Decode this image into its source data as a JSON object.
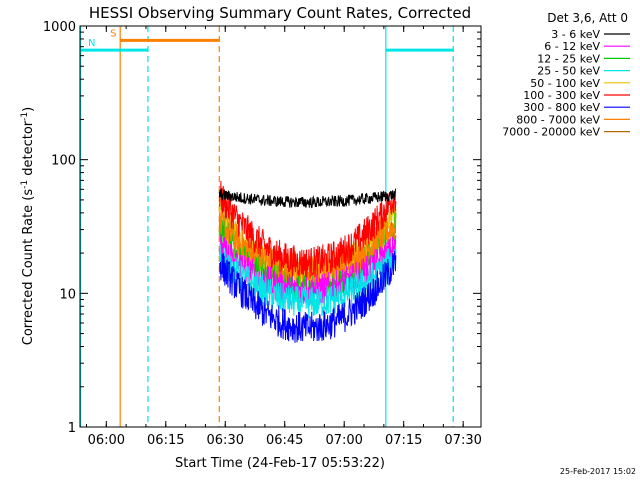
{
  "chart_data": {
    "type": "line",
    "title": "HESSI Observing Summary Count Rates, Corrected",
    "xlabel": "Start Time (24-Feb-17 05:53:22)",
    "ylabel_main": "Corrected Count Rate (s",
    "ylabel_sup1": "-1",
    "ylabel_mid": " detector",
    "ylabel_sup2": "-1",
    "ylabel_end": ")",
    "y_scale": "log",
    "ylim": [
      1,
      1000
    ],
    "xlim": [
      "05:53:22",
      "07:34:30"
    ],
    "x_ticks": [
      "06:00",
      "06:15",
      "06:30",
      "06:45",
      "07:00",
      "07:15",
      "07:30"
    ],
    "y_ticks": [
      "1",
      "10",
      "100",
      "1000"
    ],
    "grid": false,
    "legend_title": "Det 3,6, Att 0",
    "legend_position": "right",
    "data_start": "06:28:30",
    "data_end": "07:13:00",
    "series": [
      {
        "name": "3 - 6 keV",
        "color": "#000000",
        "edge": 55,
        "mid": 48
      },
      {
        "name": "6 - 12 keV",
        "color": "#ff00ff",
        "edge": 22,
        "mid": 10.5
      },
      {
        "name": "12 - 25 keV",
        "color": "#00cc00",
        "edge": 33,
        "mid": 11
      },
      {
        "name": "25 - 50 keV",
        "color": "#00e5e5",
        "edge": 19,
        "mid": 8.5
      },
      {
        "name": "50 - 100 keV",
        "color": "#e6c200",
        "edge": 40,
        "mid": 14
      },
      {
        "name": "100 - 300 keV",
        "color": "#ff0000",
        "edge": 55,
        "mid": 17
      },
      {
        "name": "300 - 800 keV",
        "color": "#0000ff",
        "edge": 17,
        "mid": 5.5
      },
      {
        "name": "800 - 7000 keV",
        "color": "#ff8000",
        "edge": 33,
        "mid": 15
      },
      {
        "name": "7000 - 20000 keV",
        "color": "#b06a00",
        "edge": 0,
        "mid": 0
      }
    ],
    "flag_bars": [
      {
        "label": "S",
        "color": "#ff7f00",
        "start": "06:03:30",
        "end": "06:28:30",
        "y": 780
      },
      {
        "label": "N",
        "color": "#00e5e5",
        "start": "05:53:22",
        "end": "06:10:30",
        "y": 660
      },
      {
        "label": "",
        "color": "#00e5e5",
        "start": "07:10:30",
        "end": "07:27:30",
        "y": 660
      }
    ],
    "vertical_lines": [
      {
        "time": "05:53:30",
        "color": "#00e5e5",
        "style": "solid"
      },
      {
        "time": "06:03:30",
        "color": "#ff7f00",
        "style": "solid"
      },
      {
        "time": "06:10:30",
        "color": "#00e5e5",
        "style": "dashed"
      },
      {
        "time": "06:28:30",
        "color": "#ff7f00",
        "style": "dashed"
      },
      {
        "time": "07:10:30",
        "color": "#00e5e5",
        "style": "solid"
      },
      {
        "time": "07:27:30",
        "color": "#00e5e5",
        "style": "dashed"
      }
    ]
  },
  "footer": {
    "date_stamp": "25-Feb-2017 15:02"
  }
}
